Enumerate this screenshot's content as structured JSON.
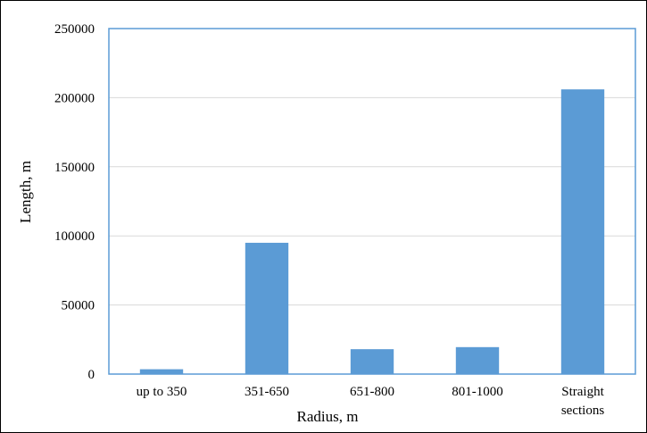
{
  "chart_data": {
    "type": "bar",
    "title": "",
    "xlabel": "Radius, m",
    "ylabel": "Length, m",
    "categories": [
      "up to 350",
      "351-650",
      "651-800",
      "801-1000",
      "Straight sections"
    ],
    "category_lines": [
      [
        "up to 350"
      ],
      [
        "351-650"
      ],
      [
        "651-800"
      ],
      [
        "801-1000"
      ],
      [
        "Straight",
        "sections"
      ]
    ],
    "values": [
      3500,
      95000,
      18000,
      19500,
      206000
    ],
    "ylim": [
      0,
      250000
    ],
    "yticks": [
      0,
      50000,
      100000,
      150000,
      200000,
      250000
    ],
    "ytick_labels": [
      "0",
      "50000",
      "100000",
      "150000",
      "200000",
      "250000"
    ],
    "grid": true,
    "legend": "none",
    "colors": {
      "bar": "#5b9bd5",
      "grid": "#d9d9d9",
      "plot_border": "#5b9bd5"
    }
  }
}
